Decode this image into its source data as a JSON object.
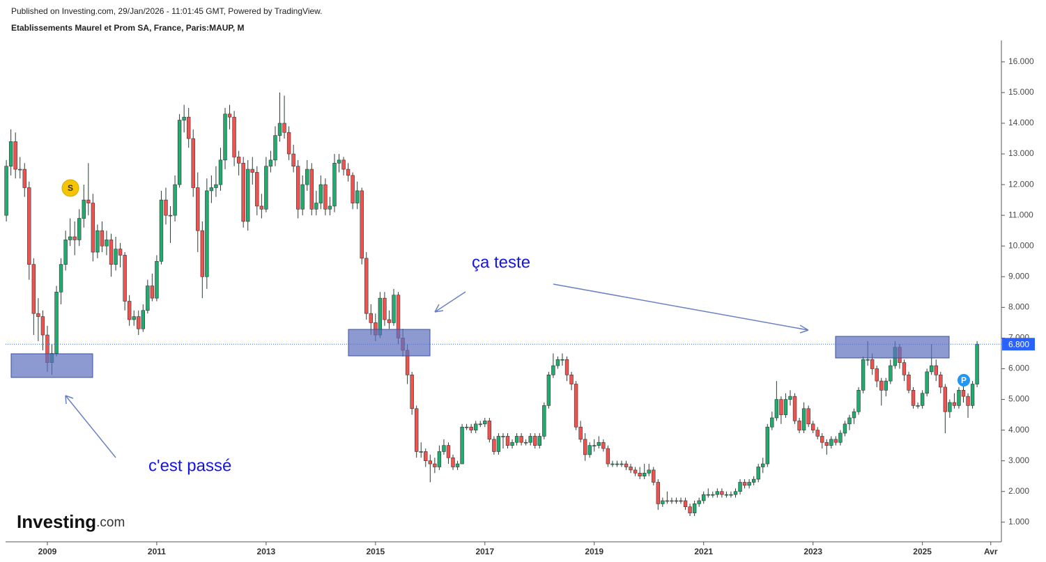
{
  "header": {
    "published": "Published on Investing.com, 29/Jan/2026 - 11:01:45 GMT, Powered by TradingView.",
    "brand": "Investing",
    "brand_suffix": ".com"
  },
  "chart_data": {
    "type": "candlestick",
    "title": "Etablissements Maurel et Prom SA, France, Paris:MAUP, M",
    "up_color": "#22ab6f",
    "down_color": "#ef5350",
    "ylim": [
      0.36,
      16.7
    ],
    "yticks": [
      {
        "value": 1,
        "label": "1.000"
      },
      {
        "value": 2,
        "label": "2.000"
      },
      {
        "value": 3,
        "label": "3.000"
      },
      {
        "value": 4,
        "label": "4.000"
      },
      {
        "value": 5,
        "label": "5.000"
      },
      {
        "value": 6,
        "label": "6.000"
      },
      {
        "value": 7,
        "label": "7.000"
      },
      {
        "value": 8,
        "label": "8.000"
      },
      {
        "value": 9,
        "label": "9.000"
      },
      {
        "value": 10,
        "label": "10.000"
      },
      {
        "value": 11,
        "label": "11.000"
      },
      {
        "value": 12,
        "label": "12.000"
      },
      {
        "value": 13,
        "label": "13.000"
      },
      {
        "value": 14,
        "label": "14.000"
      },
      {
        "value": 15,
        "label": "15.000"
      },
      {
        "value": 16,
        "label": "16.000"
      }
    ],
    "last_price": {
      "value": 6.8,
      "label": "6.800"
    },
    "annotations": [
      "ça teste",
      "c'est passé"
    ],
    "markers": [
      "S",
      "P"
    ],
    "categories": [
      null,
      null,
      null,
      null,
      null,
      null,
      null,
      null,
      null,
      "2009",
      null,
      null,
      null,
      null,
      null,
      null,
      null,
      null,
      null,
      null,
      null,
      null,
      null,
      null,
      null,
      null,
      null,
      null,
      null,
      null,
      null,
      null,
      null,
      "2011",
      null,
      null,
      null,
      null,
      null,
      null,
      null,
      null,
      null,
      null,
      null,
      null,
      null,
      null,
      null,
      null,
      null,
      null,
      null,
      null,
      null,
      null,
      null,
      "2013",
      null,
      null,
      null,
      null,
      null,
      null,
      null,
      null,
      null,
      null,
      null,
      null,
      null,
      null,
      null,
      null,
      null,
      null,
      null,
      null,
      null,
      null,
      null,
      "2015",
      null,
      null,
      null,
      null,
      null,
      null,
      null,
      null,
      null,
      null,
      null,
      null,
      null,
      null,
      null,
      null,
      null,
      null,
      null,
      null,
      null,
      null,
      null,
      "2017",
      null,
      null,
      null,
      null,
      null,
      null,
      null,
      null,
      null,
      null,
      null,
      null,
      null,
      null,
      null,
      null,
      null,
      null,
      null,
      null,
      null,
      null,
      null,
      "2019",
      null,
      null,
      null,
      null,
      null,
      null,
      null,
      null,
      null,
      null,
      null,
      null,
      null,
      null,
      null,
      null,
      null,
      null,
      null,
      null,
      null,
      null,
      null,
      "2021",
      null,
      null,
      null,
      null,
      null,
      null,
      null,
      null,
      null,
      null,
      null,
      null,
      null,
      null,
      null,
      null,
      null,
      null,
      null,
      null,
      null,
      null,
      null,
      "2023",
      null,
      null,
      null,
      null,
      null,
      null,
      null,
      null,
      null,
      null,
      null,
      null,
      null,
      null,
      null,
      null,
      null,
      null,
      null,
      null,
      null,
      null,
      null,
      "2025",
      null,
      null,
      null,
      null,
      null,
      null,
      null,
      null,
      null,
      null,
      null,
      null,
      null,
      null,
      "Avr"
    ],
    "ohlc": [
      [
        11.0,
        12.8,
        10.8,
        12.6
      ],
      [
        12.6,
        13.8,
        12.3,
        13.4
      ],
      [
        13.4,
        13.7,
        12.2,
        12.5
      ],
      [
        12.5,
        12.9,
        12.2,
        12.5
      ],
      [
        12.5,
        12.7,
        11.6,
        11.9
      ],
      [
        11.9,
        12.1,
        8.9,
        9.4
      ],
      [
        9.4,
        9.6,
        7.1,
        7.8
      ],
      [
        7.8,
        8.3,
        6.9,
        7.7
      ],
      [
        7.7,
        7.9,
        6.6,
        7.1
      ],
      [
        7.1,
        7.4,
        5.9,
        6.2
      ],
      [
        6.2,
        6.8,
        5.8,
        6.5
      ],
      [
        6.5,
        8.7,
        6.4,
        8.5
      ],
      [
        8.5,
        9.6,
        8.1,
        9.4
      ],
      [
        9.4,
        10.5,
        9.2,
        10.2
      ],
      [
        10.2,
        10.9,
        10.0,
        10.3
      ],
      [
        10.3,
        10.8,
        9.7,
        10.2
      ],
      [
        10.2,
        11.2,
        10.0,
        10.9
      ],
      [
        10.9,
        12.0,
        10.6,
        11.5
      ],
      [
        11.5,
        12.7,
        11.0,
        11.4
      ],
      [
        11.4,
        11.7,
        9.5,
        9.8
      ],
      [
        9.8,
        10.7,
        9.6,
        10.5
      ],
      [
        10.5,
        10.8,
        9.8,
        10.0
      ],
      [
        10.0,
        10.5,
        9.7,
        10.2
      ],
      [
        10.2,
        10.4,
        9.0,
        9.4
      ],
      [
        9.4,
        10.3,
        9.2,
        9.9
      ],
      [
        9.9,
        10.1,
        9.3,
        9.7
      ],
      [
        9.7,
        9.8,
        7.9,
        8.2
      ],
      [
        8.2,
        8.4,
        7.4,
        7.6
      ],
      [
        7.6,
        7.9,
        7.4,
        7.7
      ],
      [
        7.7,
        7.9,
        7.1,
        7.3
      ],
      [
        7.3,
        8.1,
        7.2,
        7.9
      ],
      [
        7.9,
        8.9,
        7.8,
        8.7
      ],
      [
        8.7,
        9.1,
        8.2,
        8.3
      ],
      [
        8.3,
        9.7,
        8.2,
        9.5
      ],
      [
        9.5,
        11.8,
        9.4,
        11.5
      ],
      [
        11.5,
        11.9,
        10.7,
        11.0
      ],
      [
        11.0,
        11.3,
        10.1,
        11.0
      ],
      [
        11.0,
        12.3,
        10.8,
        12.0
      ],
      [
        12.0,
        14.3,
        11.9,
        14.1
      ],
      [
        14.1,
        14.6,
        13.7,
        14.2
      ],
      [
        14.2,
        14.5,
        13.2,
        13.5
      ],
      [
        13.5,
        13.8,
        11.6,
        11.9
      ],
      [
        11.9,
        12.4,
        9.8,
        10.5
      ],
      [
        10.5,
        10.8,
        8.3,
        9.0
      ],
      [
        9.0,
        12.2,
        8.6,
        11.8
      ],
      [
        11.8,
        12.3,
        11.4,
        11.9
      ],
      [
        11.9,
        12.6,
        11.6,
        12.0
      ],
      [
        12.0,
        13.2,
        11.8,
        12.8
      ],
      [
        12.8,
        14.5,
        12.5,
        14.3
      ],
      [
        14.3,
        14.6,
        13.8,
        14.2
      ],
      [
        14.2,
        14.4,
        12.6,
        12.9
      ],
      [
        12.9,
        13.1,
        12.3,
        12.7
      ],
      [
        12.7,
        12.9,
        10.6,
        10.8
      ],
      [
        10.8,
        12.8,
        10.5,
        12.5
      ],
      [
        12.5,
        12.9,
        12.0,
        12.4
      ],
      [
        12.4,
        12.6,
        11.0,
        11.3
      ],
      [
        11.3,
        11.7,
        10.9,
        11.2
      ],
      [
        11.2,
        12.9,
        11.1,
        12.6
      ],
      [
        12.6,
        13.1,
        12.4,
        12.8
      ],
      [
        12.8,
        13.9,
        12.6,
        13.6
      ],
      [
        13.6,
        15.0,
        13.4,
        14.0
      ],
      [
        14.0,
        14.9,
        13.5,
        13.7
      ],
      [
        13.7,
        13.9,
        12.8,
        13.0
      ],
      [
        13.0,
        13.3,
        12.4,
        12.6
      ],
      [
        12.6,
        12.8,
        10.9,
        11.2
      ],
      [
        11.2,
        12.3,
        11.0,
        12.0
      ],
      [
        12.0,
        12.8,
        11.8,
        12.5
      ],
      [
        12.5,
        12.7,
        11.0,
        11.2
      ],
      [
        11.2,
        11.8,
        11.0,
        11.4
      ],
      [
        11.4,
        12.3,
        11.2,
        12.0
      ],
      [
        12.0,
        12.2,
        11.0,
        11.2
      ],
      [
        11.2,
        11.6,
        11.0,
        11.3
      ],
      [
        11.3,
        13.0,
        11.1,
        12.7
      ],
      [
        12.7,
        13.0,
        12.4,
        12.8
      ],
      [
        12.8,
        12.9,
        12.3,
        12.5
      ],
      [
        12.5,
        12.7,
        12.1,
        12.3
      ],
      [
        12.3,
        12.4,
        11.2,
        11.4
      ],
      [
        11.4,
        12.1,
        11.2,
        11.8
      ],
      [
        11.8,
        11.9,
        9.4,
        9.6
      ],
      [
        9.6,
        9.8,
        7.6,
        7.8
      ],
      [
        7.8,
        8.1,
        7.1,
        7.5
      ],
      [
        7.5,
        7.8,
        6.9,
        7.1
      ],
      [
        7.1,
        8.5,
        7.0,
        8.3
      ],
      [
        8.3,
        8.5,
        7.4,
        7.6
      ],
      [
        7.6,
        7.9,
        7.3,
        7.5
      ],
      [
        7.5,
        8.6,
        7.4,
        8.4
      ],
      [
        8.4,
        8.5,
        6.8,
        7.0
      ],
      [
        7.0,
        7.3,
        6.4,
        6.6
      ],
      [
        6.6,
        6.8,
        5.5,
        5.8
      ],
      [
        5.8,
        5.9,
        4.5,
        4.7
      ],
      [
        4.7,
        4.8,
        3.1,
        3.3
      ],
      [
        3.3,
        3.6,
        3.1,
        3.3
      ],
      [
        3.3,
        3.4,
        2.8,
        3.0
      ],
      [
        3.0,
        3.2,
        2.3,
        2.9
      ],
      [
        2.9,
        3.1,
        2.6,
        2.8
      ],
      [
        2.8,
        3.5,
        2.7,
        3.3
      ],
      [
        3.3,
        3.7,
        3.2,
        3.5
      ],
      [
        3.5,
        3.6,
        2.9,
        3.1
      ],
      [
        3.1,
        3.2,
        2.7,
        2.8
      ],
      [
        2.8,
        3.0,
        2.7,
        2.9
      ],
      [
        2.9,
        4.2,
        2.9,
        4.1
      ],
      [
        4.1,
        4.2,
        4.0,
        4.1
      ],
      [
        4.1,
        4.2,
        3.9,
        4.0
      ],
      [
        4.0,
        4.3,
        3.9,
        4.2
      ],
      [
        4.2,
        4.3,
        4.1,
        4.2
      ],
      [
        4.2,
        4.4,
        4.1,
        4.3
      ],
      [
        4.3,
        4.4,
        3.6,
        3.7
      ],
      [
        3.7,
        3.8,
        3.2,
        3.3
      ],
      [
        3.3,
        3.9,
        3.2,
        3.8
      ],
      [
        3.8,
        3.9,
        3.4,
        3.8
      ],
      [
        3.8,
        3.9,
        3.4,
        3.5
      ],
      [
        3.5,
        3.7,
        3.4,
        3.6
      ],
      [
        3.6,
        3.9,
        3.5,
        3.8
      ],
      [
        3.8,
        3.9,
        3.5,
        3.6
      ],
      [
        3.6,
        3.7,
        3.5,
        3.6
      ],
      [
        3.6,
        3.9,
        3.5,
        3.8
      ],
      [
        3.8,
        3.9,
        3.4,
        3.5
      ],
      [
        3.5,
        3.9,
        3.4,
        3.8
      ],
      [
        3.8,
        4.9,
        3.7,
        4.8
      ],
      [
        4.8,
        5.9,
        4.7,
        5.8
      ],
      [
        5.8,
        6.5,
        5.7,
        6.1
      ],
      [
        6.1,
        6.4,
        6.0,
        6.3
      ],
      [
        6.3,
        6.5,
        6.1,
        6.3
      ],
      [
        6.3,
        6.4,
        5.6,
        5.8
      ],
      [
        5.8,
        5.9,
        5.3,
        5.5
      ],
      [
        5.5,
        5.6,
        4.0,
        4.1
      ],
      [
        4.1,
        4.3,
        3.6,
        3.7
      ],
      [
        3.7,
        3.9,
        3.0,
        3.2
      ],
      [
        3.2,
        3.6,
        3.1,
        3.5
      ],
      [
        3.5,
        3.7,
        3.3,
        3.5
      ],
      [
        3.5,
        3.8,
        3.4,
        3.6
      ],
      [
        3.6,
        3.7,
        3.3,
        3.4
      ],
      [
        3.4,
        3.5,
        2.8,
        2.9
      ],
      [
        2.9,
        3.0,
        2.8,
        2.9
      ],
      [
        2.9,
        3.0,
        2.8,
        2.9
      ],
      [
        2.9,
        3.0,
        2.8,
        2.9
      ],
      [
        2.9,
        3.0,
        2.7,
        2.8
      ],
      [
        2.8,
        2.9,
        2.6,
        2.7
      ],
      [
        2.7,
        2.8,
        2.5,
        2.6
      ],
      [
        2.6,
        2.8,
        2.4,
        2.5
      ],
      [
        2.5,
        2.9,
        2.4,
        2.6
      ],
      [
        2.6,
        2.9,
        2.5,
        2.7
      ],
      [
        2.7,
        2.8,
        2.2,
        2.3
      ],
      [
        2.3,
        2.4,
        1.4,
        1.6
      ],
      [
        1.6,
        1.8,
        1.5,
        1.7
      ],
      [
        1.7,
        2.0,
        1.6,
        1.7
      ],
      [
        1.7,
        1.8,
        1.6,
        1.7
      ],
      [
        1.7,
        1.8,
        1.6,
        1.7
      ],
      [
        1.7,
        1.8,
        1.6,
        1.7
      ],
      [
        1.7,
        1.8,
        1.4,
        1.5
      ],
      [
        1.5,
        1.6,
        1.2,
        1.3
      ],
      [
        1.3,
        1.7,
        1.2,
        1.6
      ],
      [
        1.6,
        1.8,
        1.5,
        1.7
      ],
      [
        1.7,
        2.0,
        1.6,
        1.9
      ],
      [
        1.9,
        2.1,
        1.8,
        1.9
      ],
      [
        1.9,
        2.0,
        1.8,
        1.9
      ],
      [
        1.9,
        2.1,
        1.8,
        2.0
      ],
      [
        2.0,
        2.1,
        1.8,
        1.9
      ],
      [
        1.9,
        2.0,
        1.8,
        1.9
      ],
      [
        1.9,
        2.0,
        1.8,
        1.9
      ],
      [
        1.9,
        2.1,
        1.8,
        2.0
      ],
      [
        2.0,
        2.4,
        1.9,
        2.3
      ],
      [
        2.3,
        2.4,
        2.1,
        2.2
      ],
      [
        2.2,
        2.4,
        2.1,
        2.3
      ],
      [
        2.3,
        2.5,
        2.2,
        2.4
      ],
      [
        2.4,
        2.9,
        2.3,
        2.8
      ],
      [
        2.8,
        3.1,
        2.6,
        2.9
      ],
      [
        2.9,
        4.2,
        2.8,
        4.1
      ],
      [
        4.1,
        4.6,
        4.0,
        4.4
      ],
      [
        4.4,
        5.6,
        4.3,
        5.0
      ],
      [
        5.0,
        5.1,
        4.2,
        4.5
      ],
      [
        4.5,
        5.2,
        4.4,
        5.0
      ],
      [
        5.0,
        5.3,
        4.8,
        5.1
      ],
      [
        5.1,
        5.2,
        4.2,
        4.3
      ],
      [
        4.3,
        4.4,
        3.9,
        4.0
      ],
      [
        4.0,
        4.9,
        3.9,
        4.7
      ],
      [
        4.7,
        4.8,
        4.1,
        4.2
      ],
      [
        4.2,
        4.3,
        3.9,
        4.0
      ],
      [
        4.0,
        4.1,
        3.7,
        3.8
      ],
      [
        3.8,
        3.9,
        3.4,
        3.6
      ],
      [
        3.6,
        3.7,
        3.2,
        3.5
      ],
      [
        3.5,
        3.8,
        3.4,
        3.7
      ],
      [
        3.7,
        3.8,
        3.5,
        3.6
      ],
      [
        3.6,
        4.0,
        3.5,
        3.9
      ],
      [
        3.9,
        4.3,
        3.8,
        4.2
      ],
      [
        4.2,
        4.5,
        4.0,
        4.4
      ],
      [
        4.4,
        4.7,
        4.2,
        4.6
      ],
      [
        4.6,
        5.4,
        4.5,
        5.3
      ],
      [
        5.3,
        6.4,
        5.2,
        6.3
      ],
      [
        6.3,
        6.9,
        6.1,
        6.3
      ],
      [
        6.3,
        6.5,
        5.8,
        6.0
      ],
      [
        6.0,
        6.1,
        5.4,
        5.6
      ],
      [
        5.6,
        5.7,
        4.8,
        5.3
      ],
      [
        5.3,
        5.7,
        5.1,
        5.6
      ],
      [
        5.6,
        6.3,
        5.5,
        6.1
      ],
      [
        6.1,
        6.9,
        6.0,
        6.7
      ],
      [
        6.7,
        6.8,
        6.0,
        6.2
      ],
      [
        6.2,
        6.3,
        5.6,
        5.8
      ],
      [
        5.8,
        5.9,
        5.2,
        5.3
      ],
      [
        5.3,
        5.4,
        4.7,
        4.8
      ],
      [
        4.8,
        4.9,
        4.7,
        4.8
      ],
      [
        4.8,
        5.3,
        4.7,
        5.2
      ],
      [
        5.2,
        6.0,
        5.1,
        5.9
      ],
      [
        5.9,
        6.8,
        5.8,
        6.1
      ],
      [
        6.1,
        6.3,
        5.6,
        5.8
      ],
      [
        5.8,
        5.9,
        5.2,
        5.4
      ],
      [
        5.4,
        5.5,
        3.9,
        4.6
      ],
      [
        4.6,
        5.0,
        4.4,
        4.9
      ],
      [
        4.9,
        5.2,
        4.7,
        4.8
      ],
      [
        4.8,
        5.4,
        4.7,
        5.3
      ],
      [
        5.3,
        5.5,
        4.9,
        5.1
      ],
      [
        5.1,
        5.2,
        4.4,
        4.8
      ],
      [
        4.8,
        5.6,
        4.7,
        5.5
      ],
      [
        5.5,
        6.9,
        5.4,
        6.8
      ],
      null,
      null,
      null
    ]
  }
}
